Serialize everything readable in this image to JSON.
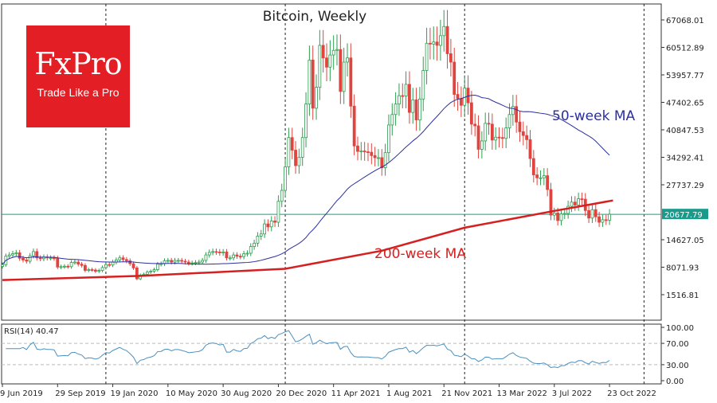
{
  "chart_data": {
    "type": "candlestick",
    "title": "Bitcoin, Weekly",
    "logo": {
      "brand": "FxPro",
      "tagline": "Trade Like a Pro",
      "color": "#e31e24"
    },
    "x_tick_labels": [
      "9 Jun 2019",
      "29 Sep 2019",
      "19 Jan 2020",
      "10 May 2020",
      "30 Aug 2020",
      "20 Dec 2020",
      "11 Apr 2021",
      "1 Aug 2021",
      "21 Nov 2021",
      "13 Mar 2022",
      "3 Jul 2022",
      "23 Oct 2022"
    ],
    "y_tick_labels": [
      "67068.01",
      "60512.89",
      "53957.77",
      "47402.65",
      "40847.53",
      "34292.41",
      "27737.29",
      "14627.05",
      "8071.93",
      "1516.81"
    ],
    "ylim": [
      -2000,
      69000
    ],
    "current_price": {
      "value": 20677.79,
      "label": "20677.79",
      "color": "#1a9a8a"
    },
    "weekly_closes": [
      8700,
      10700,
      11000,
      11300,
      11500,
      10200,
      9800,
      9500,
      10800,
      11800,
      10300,
      10100,
      10500,
      10300,
      10300,
      10200,
      8100,
      8200,
      8300,
      8200,
      9200,
      9300,
      8800,
      8500,
      7300,
      7500,
      7400,
      7100,
      7300,
      8000,
      8700,
      8600,
      9300,
      9800,
      10300,
      9900,
      9600,
      8900,
      7900,
      5300,
      6200,
      6400,
      6900,
      7100,
      7500,
      8800,
      8900,
      9600,
      9700,
      9300,
      9700,
      9700,
      9500,
      9300,
      9000,
      9100,
      9200,
      9300,
      9700,
      11000,
      11600,
      11800,
      11700,
      11500,
      11700,
      10300,
      10300,
      11000,
      10700,
      10600,
      11300,
      11400,
      13000,
      13800,
      15500,
      16000,
      18400,
      17700,
      19100,
      18800,
      23800,
      26400,
      32000,
      39000,
      36000,
      32300,
      34300,
      39000,
      47000,
      57500,
      46000,
      51000,
      61000,
      58000,
      55800,
      58700,
      59800,
      60000,
      50000,
      57000,
      58000,
      46500,
      37000,
      35700,
      35800,
      35600,
      35500,
      34700,
      34200,
      34200,
      31800,
      35400,
      42000,
      44500,
      47000,
      49000,
      48900,
      51700,
      45000,
      48000,
      43200,
      48200,
      55000,
      61500,
      61300,
      61800,
      61000,
      63300,
      65500,
      59000,
      57000,
      49300,
      48300,
      46700,
      50800,
      47300,
      42200,
      41800,
      36200,
      38200,
      42400,
      42200,
      38400,
      39100,
      39000,
      38800,
      41300,
      44500,
      46400,
      42700,
      40400,
      39500,
      38500,
      34000,
      30100,
      29400,
      29400,
      29900,
      26600,
      20500,
      21000,
      19200,
      20800,
      20900,
      22600,
      23600,
      22900,
      24400,
      24300,
      21600,
      19800,
      21800,
      20100,
      18800,
      19400,
      19300,
      20700
    ],
    "series": [
      {
        "name": "50-week MA",
        "color": "#2b2fa0"
      },
      {
        "name": "200-week MA",
        "color": "#d62020",
        "points": [
          [
            0,
            5000
          ],
          [
            40,
            6000
          ],
          [
            82,
            7700
          ],
          [
            110,
            12000
          ],
          [
            134,
            17500
          ],
          [
            160,
            21500
          ],
          [
            177,
            24000
          ]
        ]
      }
    ],
    "rsi": {
      "label": "RSI(14) 40.47",
      "ylim": [
        0,
        100
      ],
      "levels": [
        30,
        70
      ],
      "y_tick_labels": [
        "100.00",
        "70.00",
        "30.00",
        "0.00"
      ],
      "color": "#4a90c0"
    },
    "colors": {
      "up": "#2e9e4f",
      "down": "#e0443e"
    },
    "grid": false
  }
}
